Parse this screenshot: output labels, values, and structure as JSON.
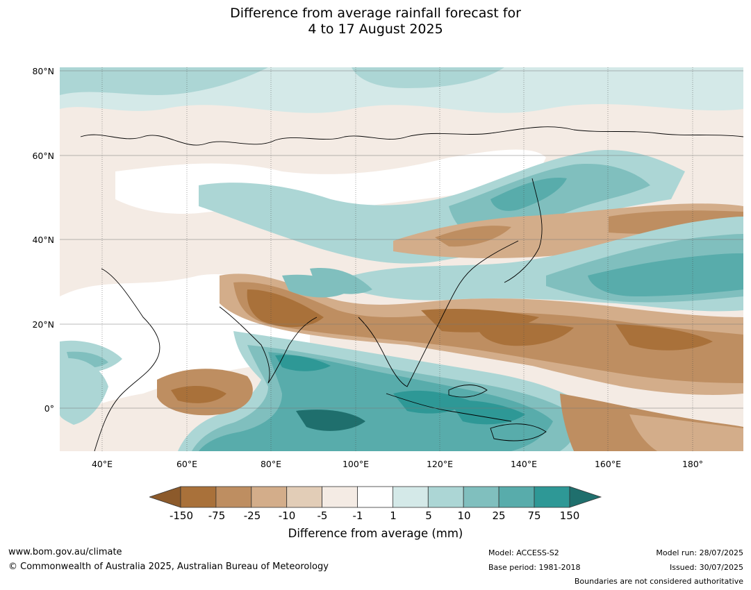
{
  "title_line1": "Difference from average rainfall forecast for",
  "title_line2": "4 to 17 August 2025",
  "lat_labels": [
    "80°N",
    "60°N",
    "40°N",
    "20°N",
    "0°"
  ],
  "lon_labels": [
    "40°E",
    "60°E",
    "80°E",
    "100°E",
    "120°E",
    "140°E",
    "160°E",
    "180°"
  ],
  "colorbar": {
    "labels": [
      "-150",
      "-75",
      "-25",
      "-10",
      "-5",
      "-1",
      "1",
      "5",
      "10",
      "25",
      "75",
      "150"
    ],
    "colors": [
      "#8c5a2b",
      "#a9713a",
      "#be8e61",
      "#d3ad8a",
      "#e2cdb7",
      "#f4ebe4",
      "#ffffff",
      "#d4e9e8",
      "#acd6d5",
      "#80bfbe",
      "#58acab",
      "#2e9896",
      "#1f6f6d"
    ],
    "title": "Difference from average (mm)"
  },
  "footer": {
    "url": "www.bom.gov.au/climate",
    "copyright": "© Commonwealth of Australia 2025, Australian Bureau of Meteorology",
    "model": "Model: ACCESS-S2",
    "base_period": "Base period: 1981-2018",
    "model_run": "Model run: 28/07/2025",
    "issued": "Issued: 30/07/2025",
    "boundaries": "Boundaries are not considered authoritative"
  }
}
